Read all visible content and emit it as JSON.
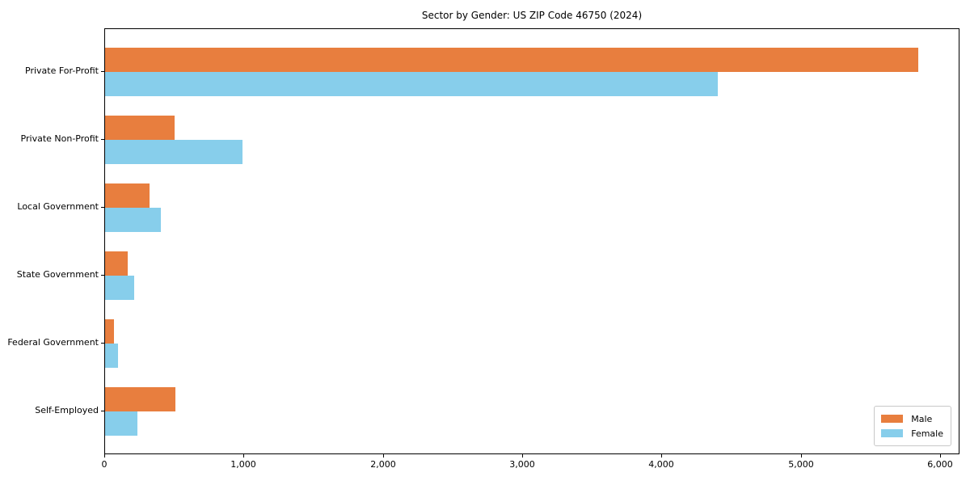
{
  "chart_data": {
    "type": "bar",
    "orientation": "horizontal",
    "title": "Sector by Gender: US ZIP Code 46750 (2024)",
    "categories": [
      "Private For-Profit",
      "Private Non-Profit",
      "Local Government",
      "State Government",
      "Federal Government",
      "Self-Employed"
    ],
    "series": [
      {
        "name": "Male",
        "color": "#e87e3e",
        "values": [
          5840,
          500,
          320,
          165,
          64,
          505
        ]
      },
      {
        "name": "Female",
        "color": "#87ceeb",
        "values": [
          4400,
          985,
          400,
          210,
          90,
          230
        ]
      }
    ],
    "xlabel": "",
    "ylabel": "",
    "xlim": [
      0,
      6140
    ],
    "xticks": [
      0,
      1000,
      2000,
      3000,
      4000,
      5000,
      6000
    ],
    "xtick_labels": [
      "0",
      "1,000",
      "2,000",
      "3,000",
      "4,000",
      "5,000",
      "6,000"
    ],
    "grid": false,
    "legend_position": "lower right",
    "frame_color": "#000000",
    "background_color": "#ffffff"
  }
}
